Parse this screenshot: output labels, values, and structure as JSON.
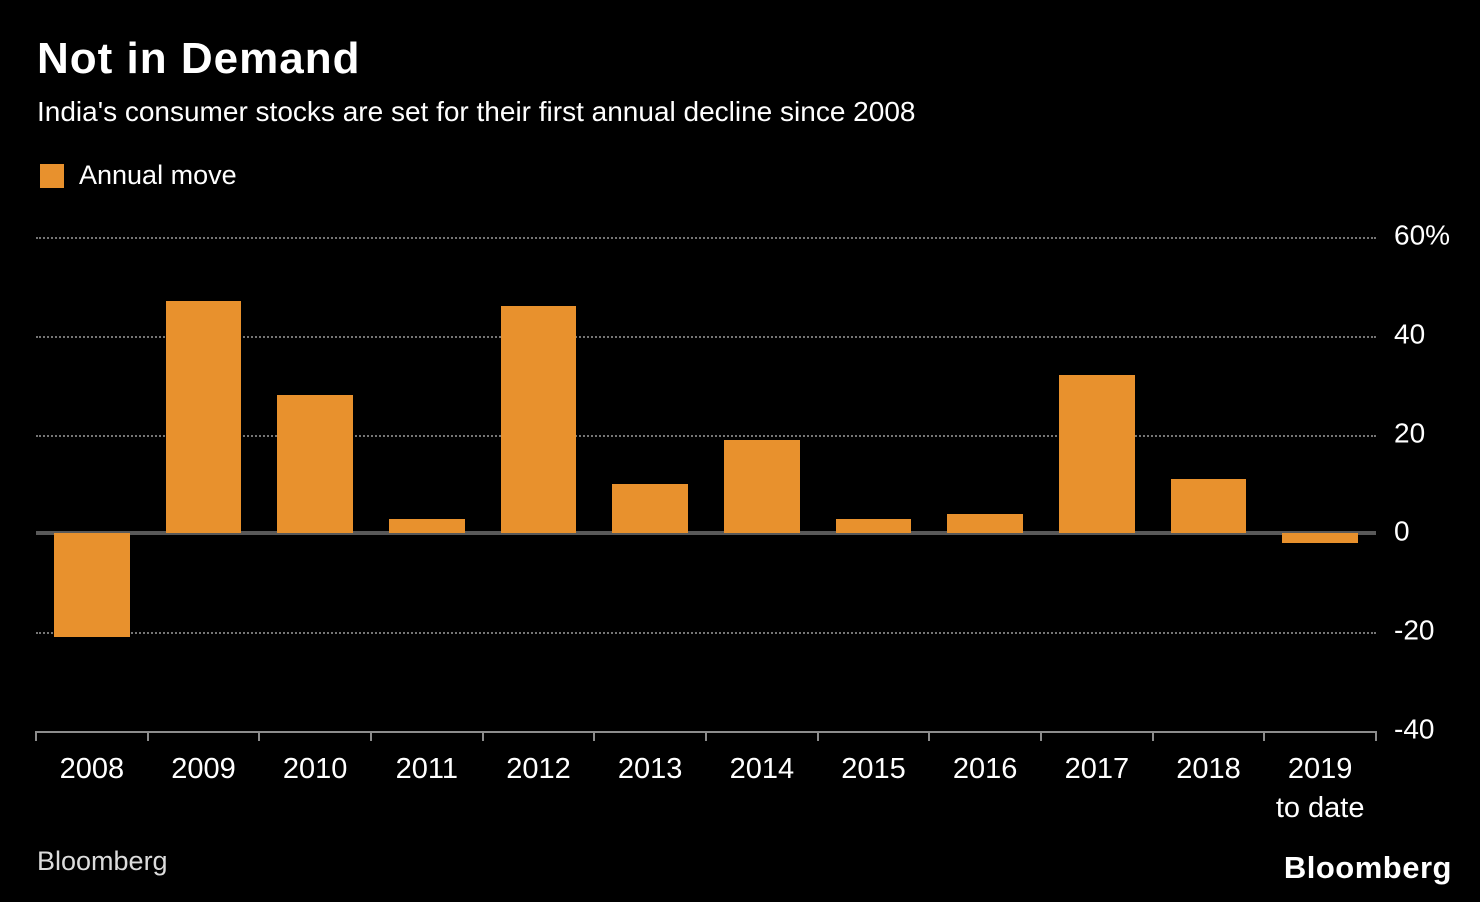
{
  "header": {
    "title": "Not in Demand",
    "subtitle": "India's consumer stocks are set for their first annual decline since 2008"
  },
  "legend": {
    "label": "Annual move"
  },
  "chart_data": {
    "type": "bar",
    "title": "Not in Demand",
    "subtitle": "India's consumer stocks are set for their first annual decline since 2008",
    "legend": "Annual move",
    "categories": [
      "2008",
      "2009",
      "2010",
      "2011",
      "2012",
      "2013",
      "2014",
      "2015",
      "2016",
      "2017",
      "2018",
      "2019"
    ],
    "sublabels": [
      "",
      "",
      "",
      "",
      "",
      "",
      "",
      "",
      "",
      "",
      "",
      "to date"
    ],
    "values": [
      -21,
      47,
      28,
      3,
      46,
      10,
      19,
      3,
      4,
      32,
      11,
      -2
    ],
    "xlabel": "",
    "ylabel": "",
    "ylim": [
      -40,
      60
    ],
    "gridlines": [
      60,
      40,
      20,
      0,
      -20,
      -40
    ],
    "ytick_labels": [
      "60%",
      "40",
      "20",
      "0",
      "-20",
      "-40"
    ],
    "bar_color": "#E8912D",
    "grid": "dotted horizontal, y-axis labels on right, zero baseline solid"
  },
  "footer": {
    "source": "Bloomberg",
    "brand": "Bloomberg"
  }
}
